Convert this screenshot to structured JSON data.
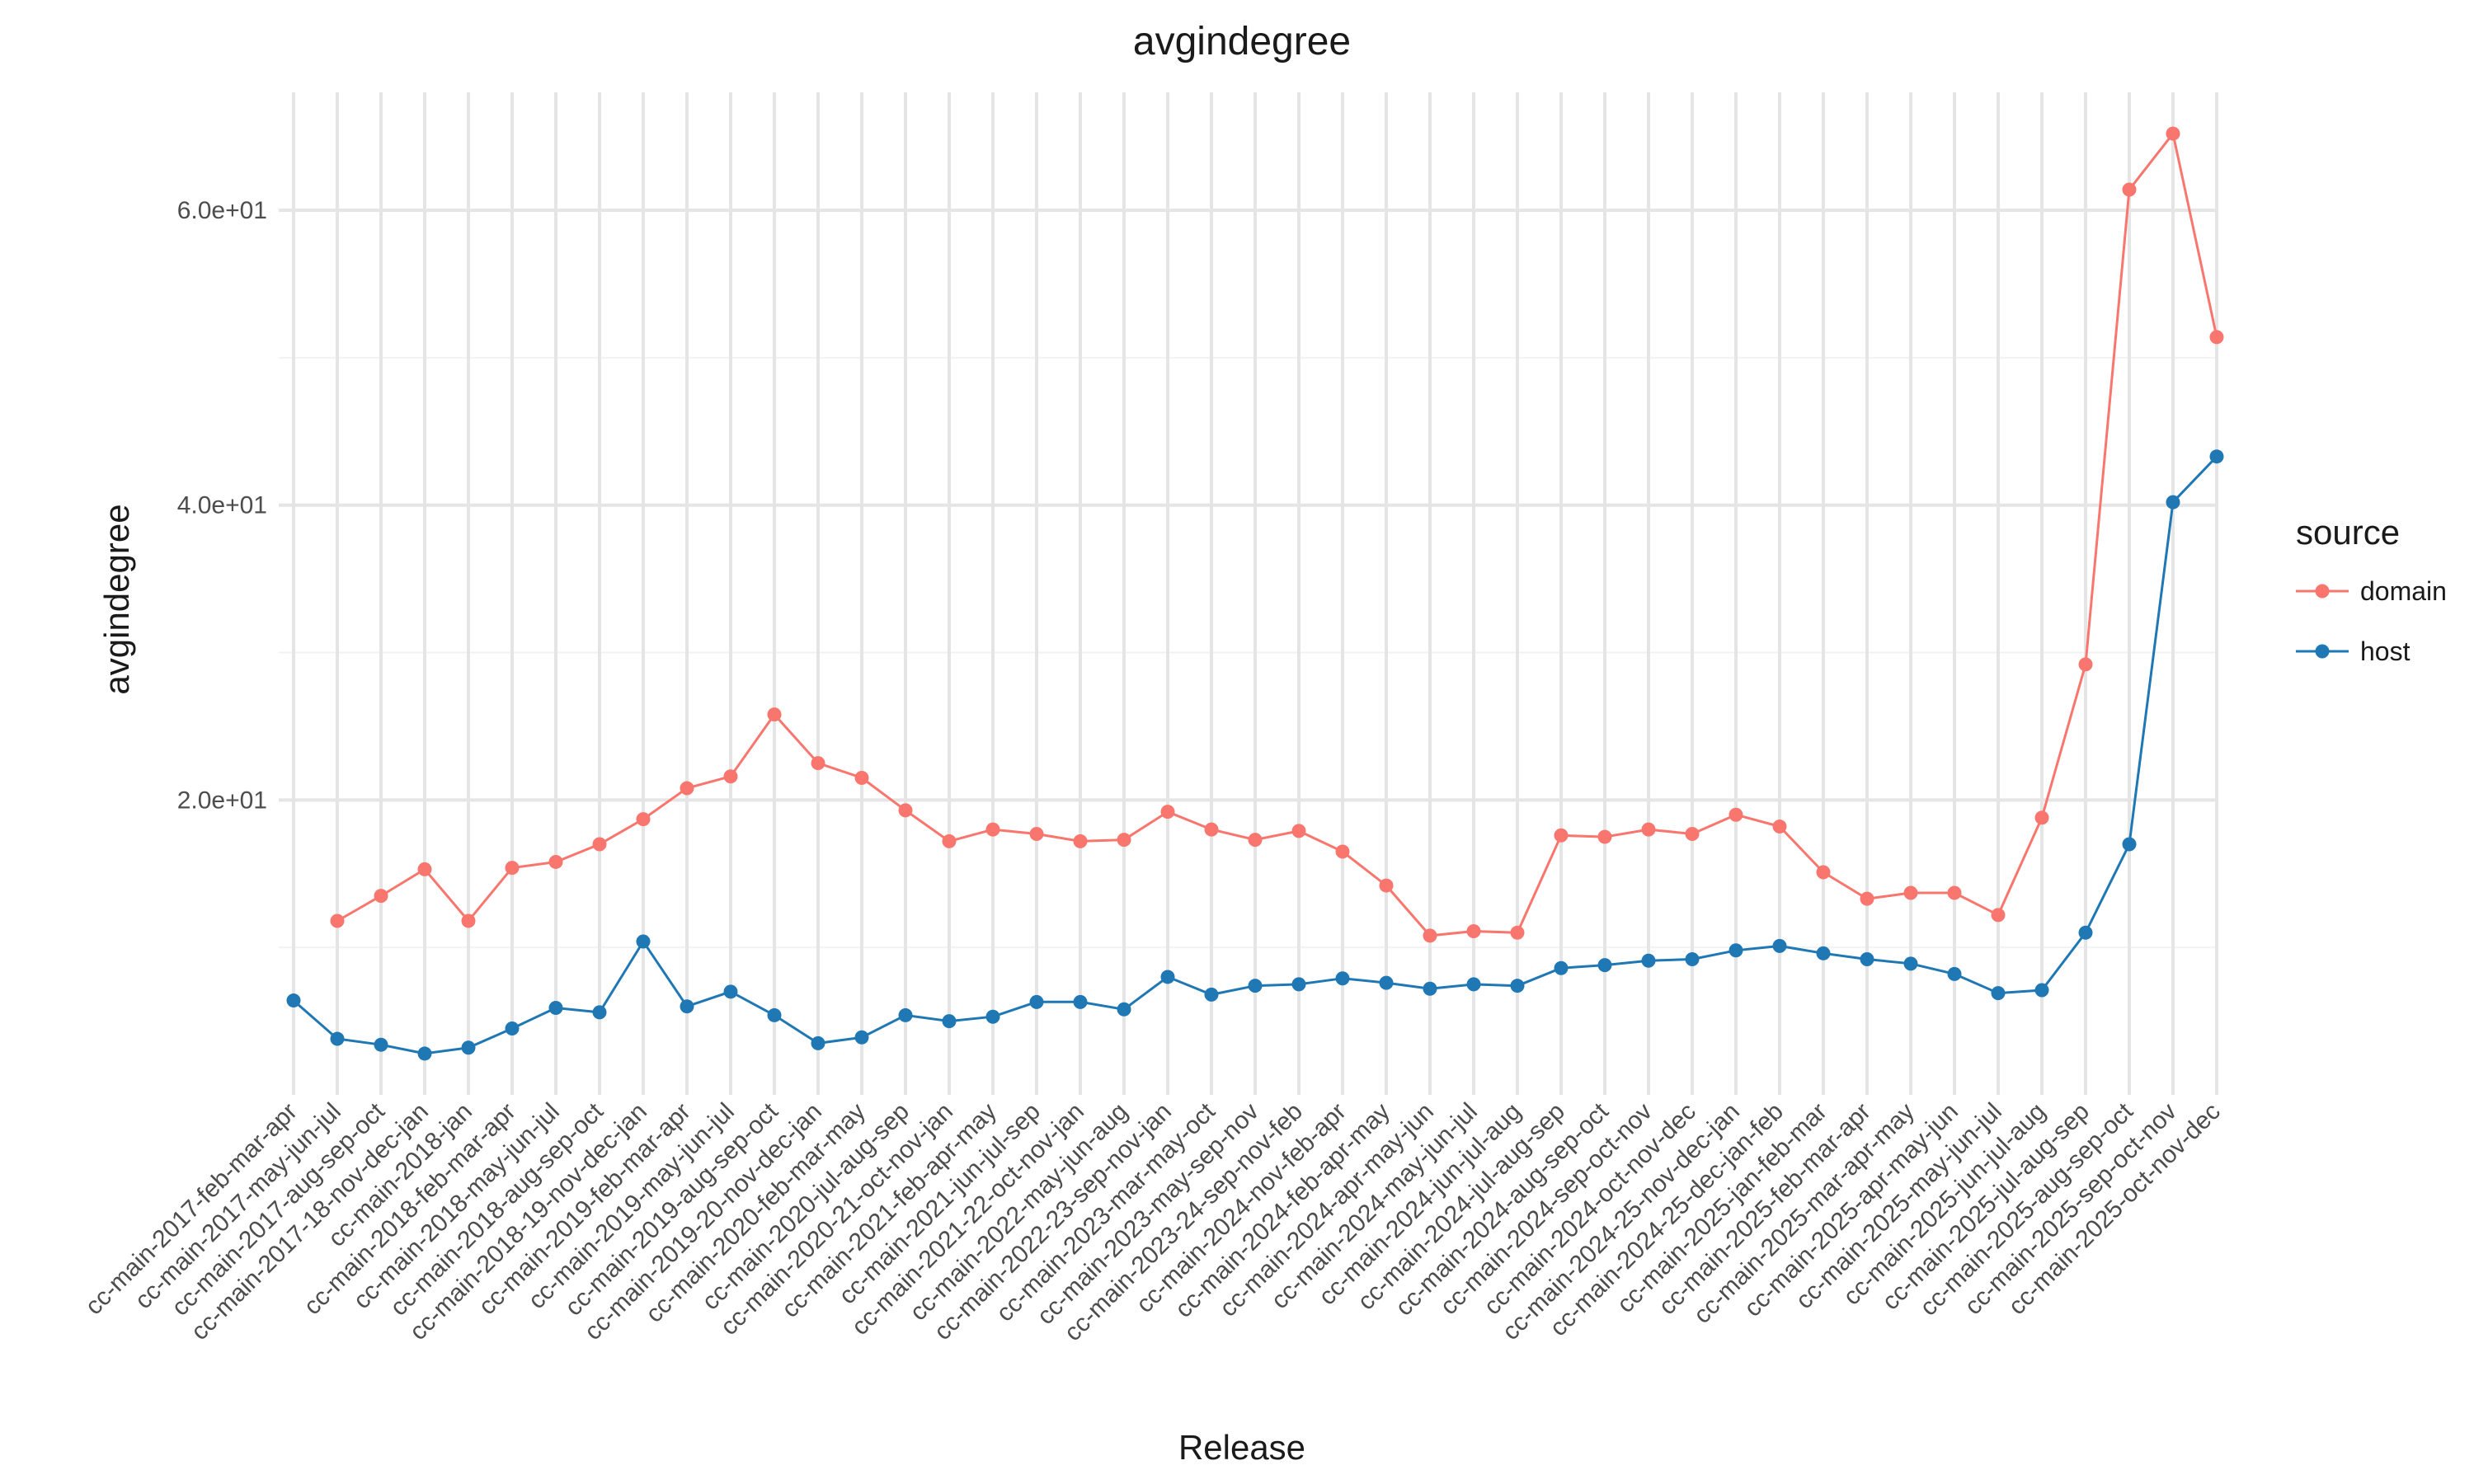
{
  "chart_data": {
    "type": "line",
    "title": "avgindegree",
    "xlabel": "Release",
    "ylabel": "avgindegree",
    "ylim": [
      0,
      68
    ],
    "yticks": [
      20,
      40,
      60
    ],
    "ytick_labels": [
      "2.0e+01",
      "4.0e+01",
      "6.0e+01"
    ],
    "grid": true,
    "legend": {
      "title": "source",
      "position": "right"
    },
    "categories": [
      "cc-main-2017-feb-mar-apr",
      "cc-main-2017-may-jun-jul",
      "cc-main-2017-aug-sep-oct",
      "cc-main-2017-18-nov-dec-jan",
      "cc-main-2018-jan",
      "cc-main-2018-feb-mar-apr",
      "cc-main-2018-may-jun-jul",
      "cc-main-2018-aug-sep-oct",
      "cc-main-2018-19-nov-dec-jan",
      "cc-main-2019-feb-mar-apr",
      "cc-main-2019-may-jun-jul",
      "cc-main-2019-aug-sep-oct",
      "cc-main-2019-20-nov-dec-jan",
      "cc-main-2020-feb-mar-may",
      "cc-main-2020-jul-aug-sep",
      "cc-main-2020-21-oct-nov-jan",
      "cc-main-2021-feb-apr-may",
      "cc-main-2021-jun-jul-sep",
      "cc-main-2021-22-oct-nov-jan",
      "cc-main-2022-may-jun-aug",
      "cc-main-2022-23-sep-nov-jan",
      "cc-main-2023-mar-may-oct",
      "cc-main-2023-may-sep-nov",
      "cc-main-2023-24-sep-nov-feb",
      "cc-main-2024-nov-feb-apr",
      "cc-main-2024-feb-apr-may",
      "cc-main-2024-apr-may-jun",
      "cc-main-2024-may-jun-jul",
      "cc-main-2024-jun-jul-aug",
      "cc-main-2024-jul-aug-sep",
      "cc-main-2024-aug-sep-oct",
      "cc-main-2024-sep-oct-nov",
      "cc-main-2024-oct-nov-dec",
      "cc-main-2024-25-nov-dec-jan",
      "cc-main-2024-25-dec-jan-feb",
      "cc-main-2025-jan-feb-mar",
      "cc-main-2025-feb-mar-apr",
      "cc-main-2025-mar-apr-may",
      "cc-main-2025-apr-may-jun",
      "cc-main-2025-may-jun-jul",
      "cc-main-2025-jun-jul-aug",
      "cc-main-2025-jul-aug-sep",
      "cc-main-2025-aug-sep-oct",
      "cc-main-2025-sep-oct-nov",
      "cc-main-2025-oct-nov-dec"
    ],
    "series": [
      {
        "name": "domain",
        "color": "#f8766d",
        "values": [
          null,
          11.8,
          13.5,
          15.3,
          11.8,
          15.4,
          15.8,
          17.0,
          18.7,
          20.8,
          21.6,
          25.8,
          22.5,
          21.5,
          19.3,
          17.2,
          18.0,
          17.7,
          17.2,
          17.3,
          19.2,
          18.0,
          17.3,
          17.9,
          16.5,
          14.2,
          10.8,
          11.1,
          11.0,
          17.6,
          17.5,
          18.0,
          17.7,
          19.0,
          18.2,
          15.1,
          13.3,
          13.7,
          13.7,
          12.2,
          18.8,
          29.2,
          61.4,
          65.2,
          51.4
        ]
      },
      {
        "name": "host",
        "color": "#1f77b4",
        "values": [
          6.4,
          3.8,
          3.4,
          2.8,
          3.2,
          4.5,
          5.9,
          5.6,
          10.4,
          6.0,
          7.0,
          5.4,
          3.5,
          3.9,
          5.4,
          5.0,
          5.3,
          6.3,
          6.3,
          5.8,
          8.0,
          6.8,
          7.4,
          7.5,
          7.9,
          7.6,
          7.2,
          7.5,
          7.4,
          8.6,
          8.8,
          9.1,
          9.2,
          9.8,
          10.1,
          9.6,
          9.2,
          8.9,
          8.2,
          6.9,
          7.1,
          11.0,
          17.0,
          40.2,
          43.3
        ]
      }
    ]
  }
}
